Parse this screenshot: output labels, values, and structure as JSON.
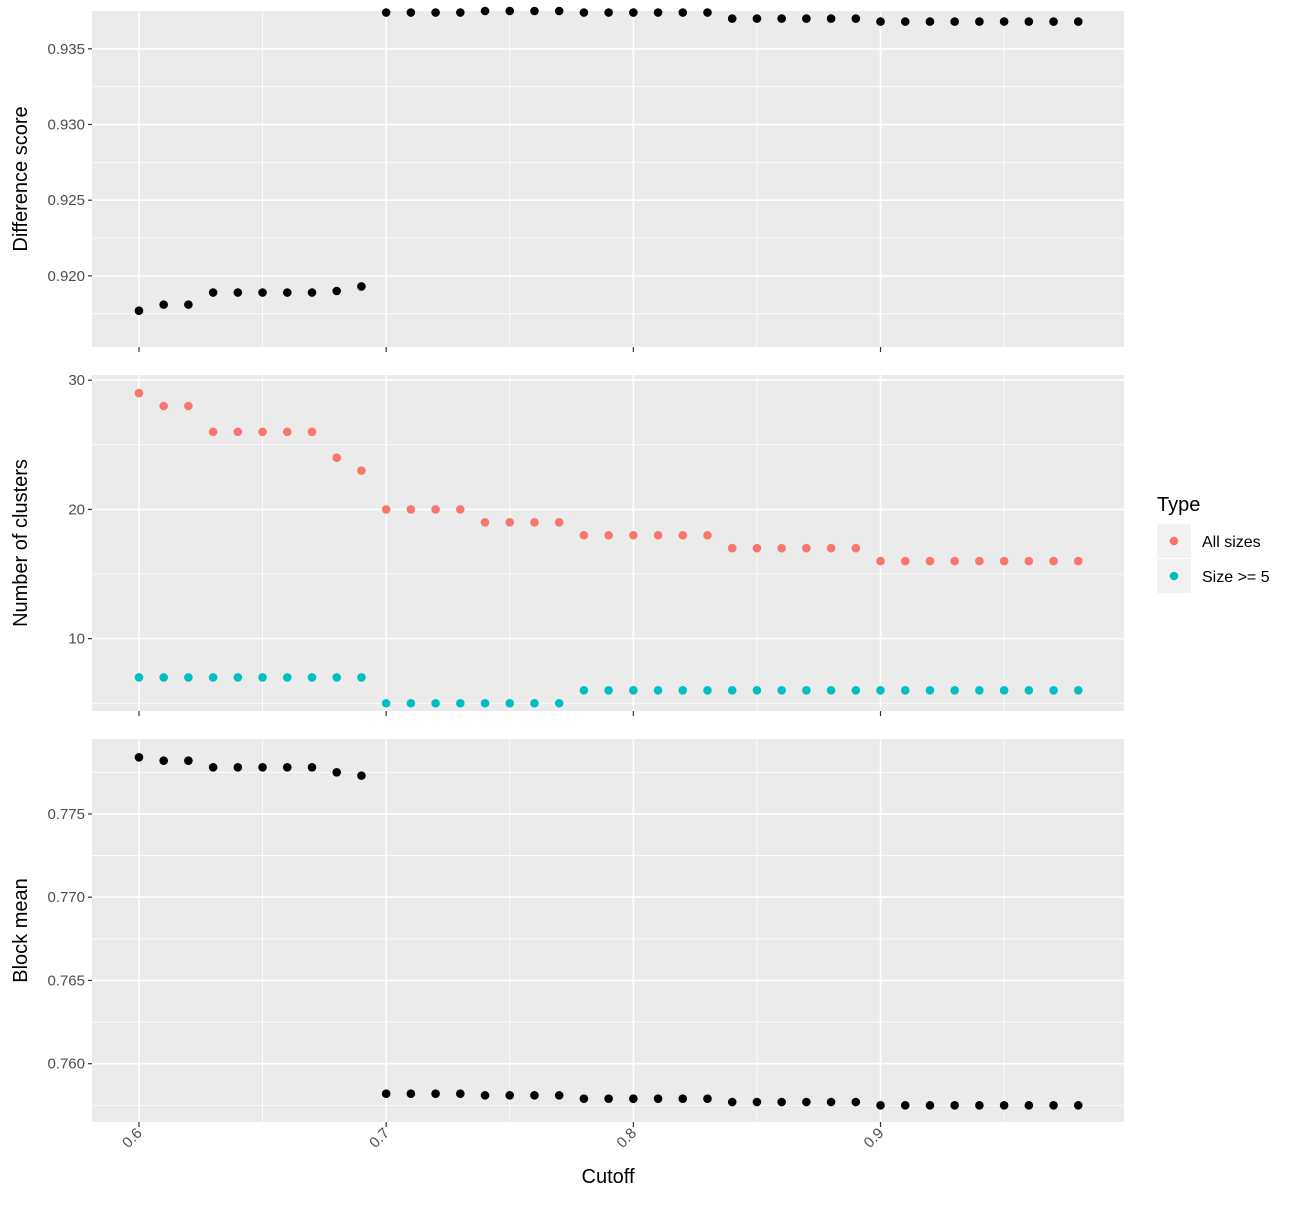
{
  "chart_data": {
    "type": "scatter",
    "xlabel": "Cutoff",
    "x_tick_labels": [
      "0.6",
      "0.7",
      "0.8",
      "0.9"
    ],
    "x_ticks": [
      0.6,
      0.7,
      0.8,
      0.9
    ],
    "xlim": [
      0.581,
      0.9985
    ],
    "x": [
      0.6,
      0.61,
      0.62,
      0.63,
      0.64,
      0.65,
      0.66,
      0.67,
      0.68,
      0.69,
      0.7,
      0.71,
      0.72,
      0.73,
      0.74,
      0.75,
      0.76,
      0.77,
      0.78,
      0.79,
      0.8,
      0.81,
      0.82,
      0.83,
      0.84,
      0.85,
      0.86,
      0.87,
      0.88,
      0.89,
      0.9,
      0.91,
      0.92,
      0.93,
      0.94,
      0.95,
      0.96,
      0.97,
      0.98
    ],
    "grid": true,
    "legend": {
      "title": "Type",
      "position": "right",
      "entries": [
        {
          "label": "All sizes",
          "color": "#F8766D"
        },
        {
          "label": "Size >= 5",
          "color": "#00BFC4"
        }
      ]
    },
    "panels": [
      {
        "ylabel": "Difference score",
        "ylim": [
          0.9153,
          0.9375
        ],
        "y_ticks": [
          0.92,
          0.925,
          0.93,
          0.935
        ],
        "y_tick_labels": [
          "0.920",
          "0.925",
          "0.930",
          "0.935"
        ],
        "series": [
          {
            "color": "#000000",
            "values": [
              0.9177,
              0.9181,
              0.9181,
              0.9189,
              0.9189,
              0.9189,
              0.9189,
              0.9189,
              0.919,
              0.9193,
              0.9374,
              0.9374,
              0.9374,
              0.9374,
              0.9375,
              0.9375,
              0.9375,
              0.9375,
              0.9374,
              0.9374,
              0.9374,
              0.9374,
              0.9374,
              0.9374,
              0.937,
              0.937,
              0.937,
              0.937,
              0.937,
              0.937,
              0.9368,
              0.9368,
              0.9368,
              0.9368,
              0.9368,
              0.9368,
              0.9368,
              0.9368,
              0.9368
            ]
          }
        ]
      },
      {
        "ylabel": "Number of clusters",
        "ylim": [
          4.4,
          30.4
        ],
        "y_ticks": [
          10,
          20,
          30
        ],
        "y_tick_labels": [
          "10",
          "20",
          "30"
        ],
        "series": [
          {
            "name": "All sizes",
            "color": "#F8766D",
            "values": [
              29,
              28,
              28,
              26,
              26,
              26,
              26,
              26,
              24,
              23,
              20,
              20,
              20,
              20,
              19,
              19,
              19,
              19,
              18,
              18,
              18,
              18,
              18,
              18,
              17,
              17,
              17,
              17,
              17,
              17,
              16,
              16,
              16,
              16,
              16,
              16,
              16,
              16,
              16
            ]
          },
          {
            "name": "Size >= 5",
            "color": "#00BFC4",
            "values": [
              7,
              7,
              7,
              7,
              7,
              7,
              7,
              7,
              7,
              7,
              5,
              5,
              5,
              5,
              5,
              5,
              5,
              5,
              6,
              6,
              6,
              6,
              6,
              6,
              6,
              6,
              6,
              6,
              6,
              6,
              6,
              6,
              6,
              6,
              6,
              6,
              6,
              6,
              6
            ]
          }
        ]
      },
      {
        "ylabel": "Block mean",
        "ylim": [
          0.7565,
          0.7795
        ],
        "y_ticks": [
          0.76,
          0.765,
          0.77,
          0.775
        ],
        "y_tick_labels": [
          "0.760",
          "0.765",
          "0.770",
          "0.775"
        ],
        "series": [
          {
            "color": "#000000",
            "values": [
              0.7784,
              0.7782,
              0.7782,
              0.7778,
              0.7778,
              0.7778,
              0.7778,
              0.7778,
              0.7775,
              0.7773,
              0.7582,
              0.7582,
              0.7582,
              0.7582,
              0.7581,
              0.7581,
              0.7581,
              0.7581,
              0.7579,
              0.7579,
              0.7579,
              0.7579,
              0.7579,
              0.7579,
              0.7577,
              0.7577,
              0.7577,
              0.7577,
              0.7577,
              0.7577,
              0.7575,
              0.7575,
              0.7575,
              0.7575,
              0.7575,
              0.7575,
              0.7575,
              0.7575,
              0.7575
            ]
          }
        ]
      }
    ]
  }
}
